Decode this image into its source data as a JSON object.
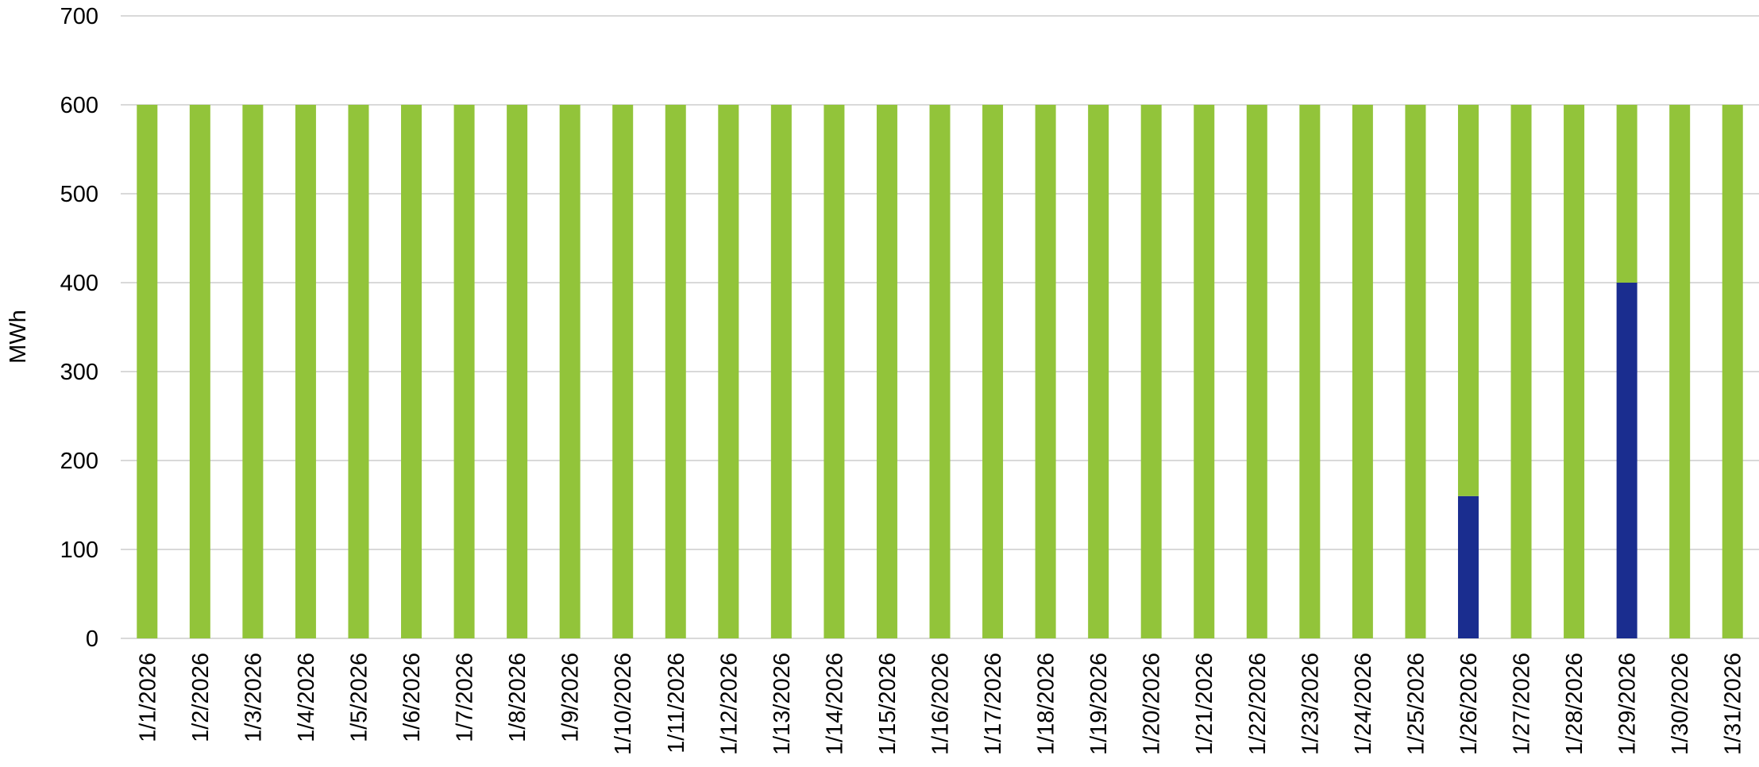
{
  "chart_data": {
    "type": "bar",
    "stacked": true,
    "ylabel": "MWh",
    "ylim": [
      0,
      700
    ],
    "y_ticks": [
      "0",
      "100",
      "200",
      "300",
      "400",
      "500",
      "600",
      "700"
    ],
    "grid": true,
    "categories": [
      "1/1/2026",
      "1/2/2026",
      "1/3/2026",
      "1/4/2026",
      "1/5/2026",
      "1/6/2026",
      "1/7/2026",
      "1/8/2026",
      "1/9/2026",
      "1/10/2026",
      "1/11/2026",
      "1/12/2026",
      "1/13/2026",
      "1/14/2026",
      "1/15/2026",
      "1/16/2026",
      "1/17/2026",
      "1/18/2026",
      "1/19/2026",
      "1/20/2026",
      "1/21/2026",
      "1/22/2026",
      "1/23/2026",
      "1/24/2026",
      "1/25/2026",
      "1/26/2026",
      "1/27/2026",
      "1/28/2026",
      "1/29/2026",
      "1/30/2026",
      "1/31/2026"
    ],
    "series": [
      {
        "color": "#1a2d8f",
        "values": [
          0,
          0,
          0,
          0,
          0,
          0,
          0,
          0,
          0,
          0,
          0,
          0,
          0,
          0,
          0,
          0,
          0,
          0,
          0,
          0,
          0,
          0,
          0,
          0,
          0,
          160,
          0,
          0,
          400,
          0,
          0
        ]
      },
      {
        "color": "#92c43a",
        "values": [
          600,
          600,
          600,
          600,
          600,
          600,
          600,
          600,
          600,
          600,
          600,
          600,
          600,
          600,
          600,
          600,
          600,
          600,
          600,
          600,
          600,
          600,
          600,
          600,
          600,
          440,
          600,
          600,
          200,
          600,
          600
        ]
      }
    ]
  }
}
